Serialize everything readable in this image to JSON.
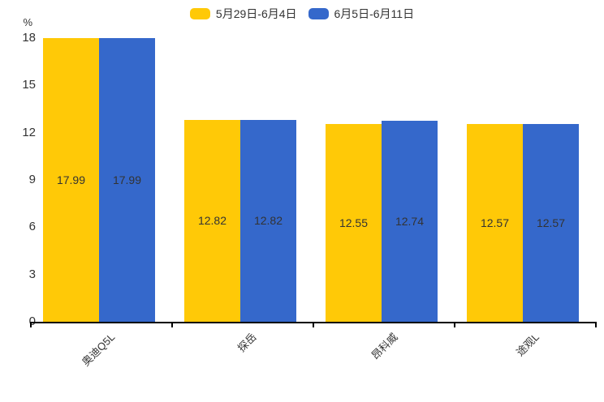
{
  "chart_data": {
    "type": "bar",
    "title": "",
    "categories": [
      "奥迪Q5L",
      "探岳",
      "昂科威",
      "途观L"
    ],
    "series": [
      {
        "name": "5月29日-6月4日",
        "color": "#FFC907",
        "values": [
          17.99,
          12.82,
          12.55,
          12.57
        ]
      },
      {
        "name": "6月5日-6月11日",
        "color": "#3568CB",
        "values": [
          17.99,
          12.82,
          12.74,
          12.57
        ]
      }
    ],
    "xlabel": "",
    "ylabel": "%",
    "ylim": [
      0,
      18
    ],
    "yticks": [
      0,
      3,
      6,
      9,
      12,
      15,
      18
    ],
    "grid": false,
    "legend_position": "top",
    "value_labels": true,
    "value_label_format": "2-decimals",
    "axis_color": "#000000",
    "label_color": "#333333"
  }
}
